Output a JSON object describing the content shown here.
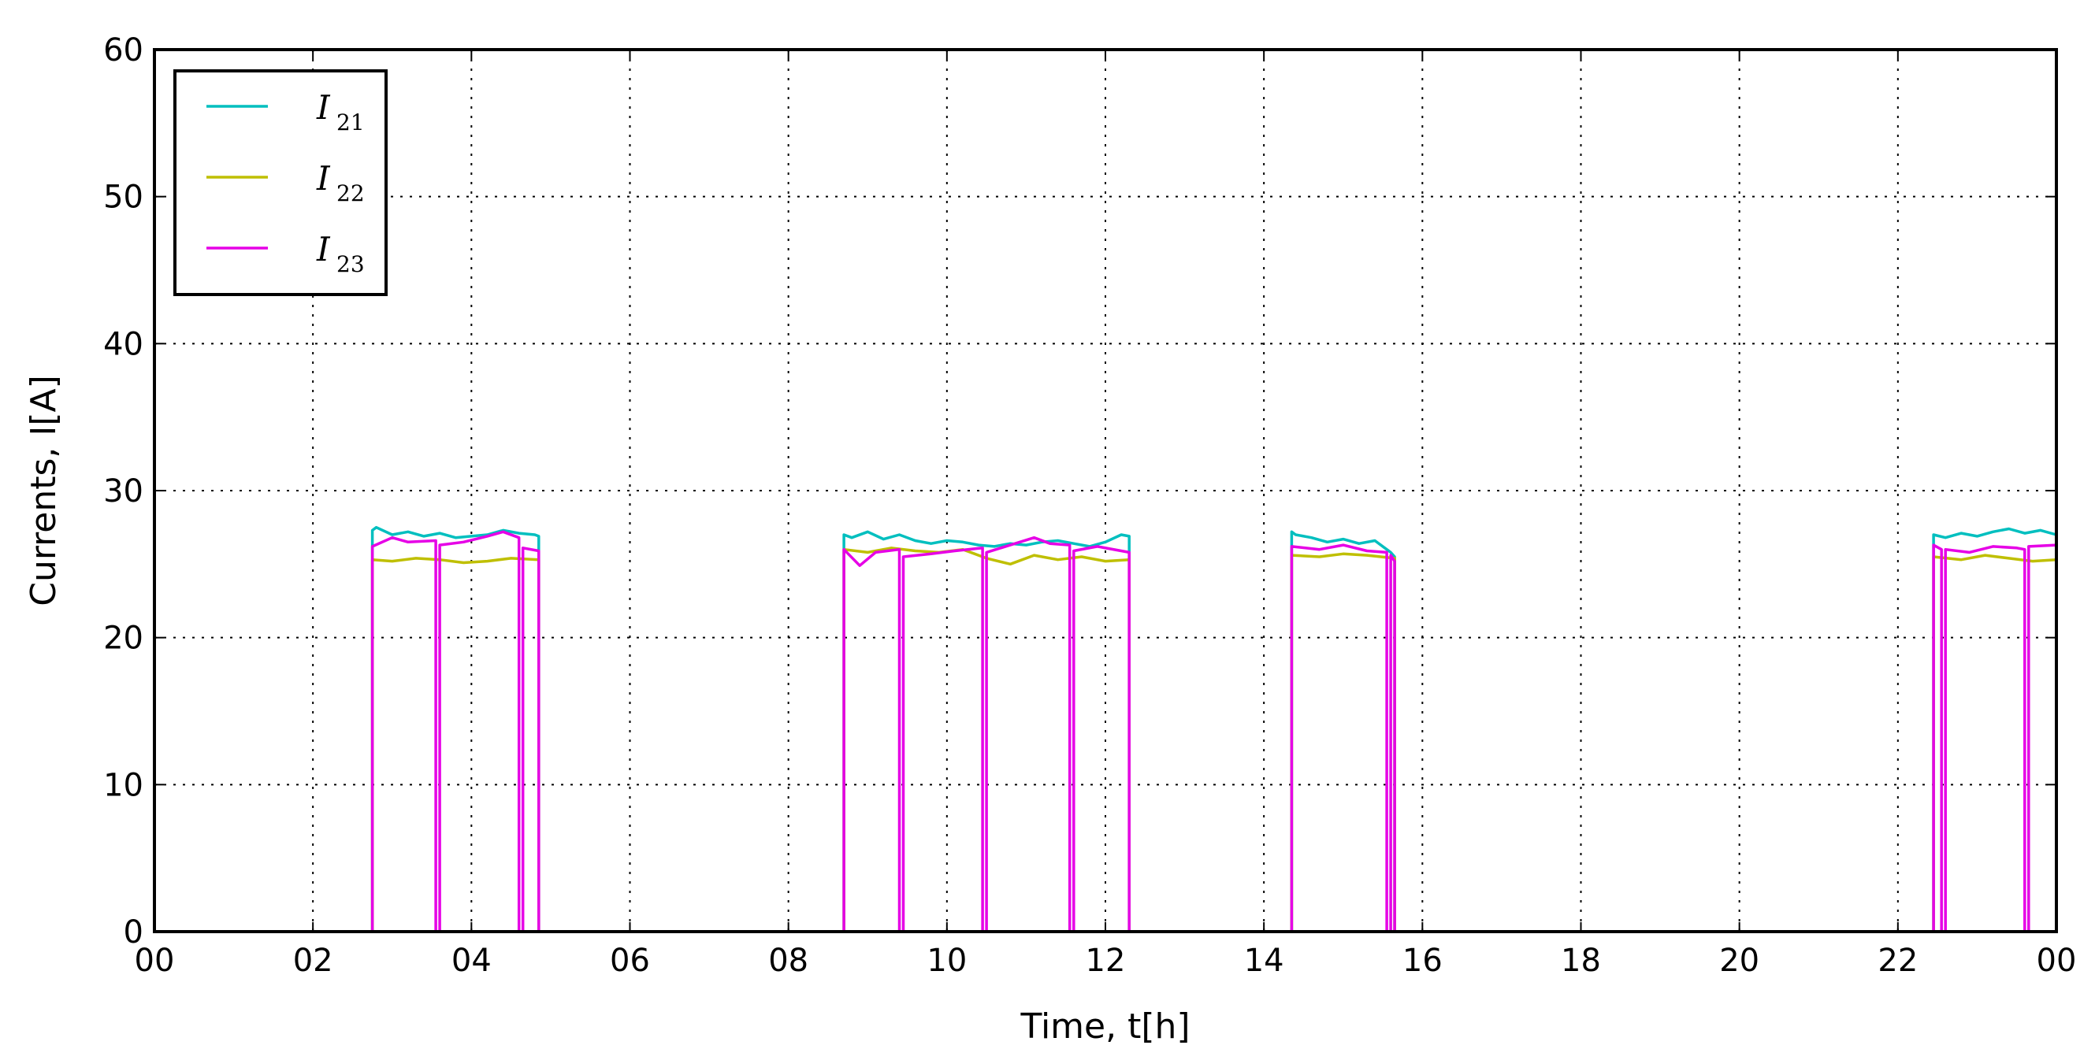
{
  "chart_data": {
    "type": "line",
    "xlabel": "Time, t[h]",
    "ylabel": "Currents, I[A]",
    "xlim": [
      0,
      24
    ],
    "ylim": [
      0,
      60
    ],
    "x_ticks": [
      "00",
      "02",
      "04",
      "06",
      "08",
      "10",
      "12",
      "14",
      "16",
      "18",
      "20",
      "22",
      "00"
    ],
    "y_ticks": [
      "0",
      "10",
      "20",
      "30",
      "40",
      "50",
      "60"
    ],
    "grid": true,
    "legend_position": "top-left",
    "series": [
      {
        "name": "I21",
        "name_main": "I",
        "name_sub": "21",
        "color": "#00bfbf",
        "x": [
          0,
          2.75,
          2.75,
          2.8,
          3.0,
          3.2,
          3.4,
          3.6,
          3.8,
          4.0,
          4.2,
          4.4,
          4.6,
          4.8,
          4.85,
          4.85,
          8.7,
          8.7,
          8.8,
          9.0,
          9.2,
          9.4,
          9.6,
          9.8,
          10.0,
          10.2,
          10.4,
          10.6,
          10.8,
          11.0,
          11.2,
          11.4,
          11.6,
          11.8,
          12.0,
          12.2,
          12.3,
          12.3,
          14.35,
          14.35,
          14.4,
          14.6,
          14.8,
          15.0,
          15.2,
          15.4,
          15.55,
          15.6,
          15.65,
          15.65,
          22.45,
          22.45,
          22.6,
          22.8,
          23.0,
          23.2,
          23.4,
          23.6,
          23.8,
          24.0
        ],
        "y": [
          0,
          0,
          27.3,
          27.5,
          27.0,
          27.2,
          26.9,
          27.1,
          26.8,
          26.9,
          27.0,
          27.3,
          27.1,
          27.0,
          26.9,
          0,
          0,
          27.0,
          26.8,
          27.2,
          26.7,
          27.0,
          26.6,
          26.4,
          26.6,
          26.5,
          26.3,
          26.2,
          26.4,
          26.3,
          26.5,
          26.6,
          26.4,
          26.2,
          26.5,
          27.0,
          26.9,
          0,
          0,
          27.2,
          27.0,
          26.8,
          26.5,
          26.7,
          26.4,
          26.6,
          26.0,
          25.8,
          25.5,
          0,
          0,
          27.0,
          26.8,
          27.1,
          26.9,
          27.2,
          27.4,
          27.1,
          27.3,
          27.0
        ]
      },
      {
        "name": "I22",
        "name_main": "I",
        "name_sub": "22",
        "color": "#bfbf00",
        "x": [
          0,
          2.75,
          2.75,
          3.0,
          3.3,
          3.6,
          3.9,
          4.2,
          4.5,
          4.85,
          4.85,
          8.7,
          8.7,
          9.0,
          9.3,
          9.6,
          9.9,
          10.2,
          10.5,
          10.8,
          11.1,
          11.4,
          11.7,
          12.0,
          12.3,
          12.3,
          14.35,
          14.35,
          14.7,
          15.0,
          15.3,
          15.65,
          15.65,
          22.45,
          22.45,
          22.8,
          23.1,
          23.4,
          23.7,
          24.0
        ],
        "y": [
          0,
          0,
          25.3,
          25.2,
          25.4,
          25.3,
          25.1,
          25.2,
          25.4,
          25.3,
          0,
          0,
          26.0,
          25.8,
          26.1,
          25.9,
          25.8,
          26.0,
          25.4,
          25.0,
          25.6,
          25.3,
          25.5,
          25.2,
          25.3,
          0,
          0,
          25.6,
          25.5,
          25.7,
          25.6,
          25.4,
          0,
          0,
          25.5,
          25.3,
          25.6,
          25.4,
          25.2,
          25.3
        ]
      },
      {
        "name": "I23",
        "name_main": "I",
        "name_sub": "23",
        "color": "#e600e6",
        "x": [
          0,
          2.75,
          2.75,
          3.0,
          3.2,
          3.55,
          3.55,
          3.6,
          3.6,
          3.9,
          4.2,
          4.4,
          4.6,
          4.6,
          4.65,
          4.65,
          4.85,
          4.85,
          8.7,
          8.7,
          8.9,
          9.1,
          9.4,
          9.4,
          9.45,
          9.45,
          9.8,
          10.1,
          10.45,
          10.45,
          10.5,
          10.5,
          10.8,
          11.1,
          11.3,
          11.55,
          11.55,
          11.6,
          11.6,
          11.9,
          12.3,
          12.3,
          14.35,
          14.35,
          14.7,
          15.0,
          15.3,
          15.55,
          15.55,
          15.6,
          15.6,
          15.65,
          15.65,
          22.45,
          22.45,
          22.55,
          22.55,
          22.6,
          22.6,
          22.9,
          23.2,
          23.5,
          23.6,
          23.6,
          23.65,
          23.65,
          24.0
        ],
        "y": [
          0,
          0,
          26.2,
          26.8,
          26.5,
          26.6,
          0,
          0,
          26.3,
          26.5,
          26.9,
          27.2,
          26.8,
          0,
          0,
          26.1,
          25.9,
          0,
          0,
          26.0,
          24.9,
          25.8,
          26.0,
          0,
          0,
          25.5,
          25.7,
          25.9,
          26.1,
          0,
          0,
          25.8,
          26.3,
          26.8,
          26.4,
          26.3,
          0,
          0,
          25.9,
          26.2,
          25.8,
          0,
          0,
          26.2,
          26.0,
          26.3,
          25.9,
          25.8,
          0,
          0,
          25.6,
          25.2,
          0,
          0,
          26.3,
          26.0,
          0,
          0,
          26.0,
          25.8,
          26.2,
          26.1,
          26.0,
          0,
          0,
          26.2,
          26.3
        ]
      }
    ]
  }
}
